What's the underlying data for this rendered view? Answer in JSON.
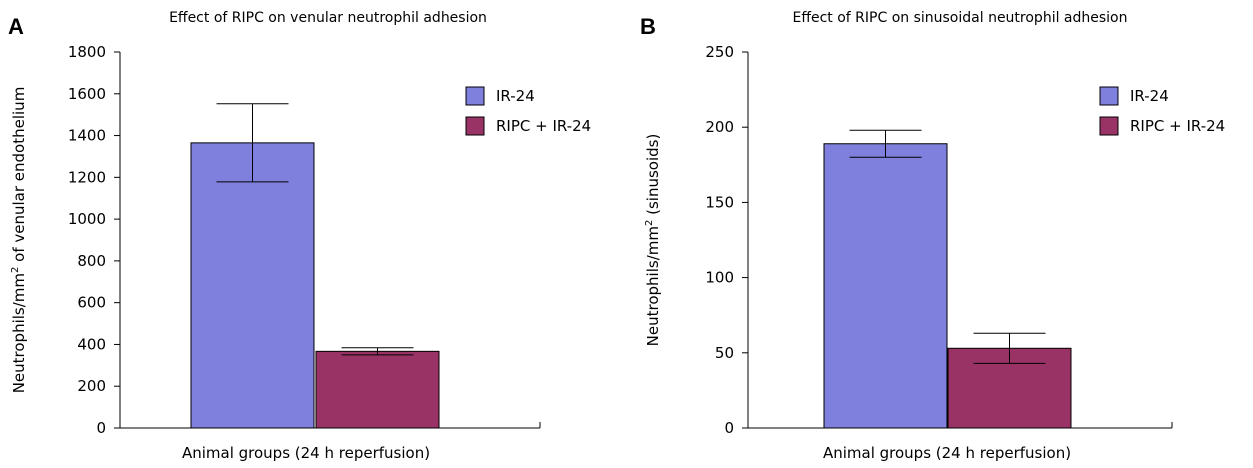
{
  "chart_data": [
    {
      "type": "bar",
      "panel_label": "A",
      "title": "Effect of RIPC on venular neutrophil adhesion",
      "xlabel": "Animal groups (24 h reperfusion)",
      "ylabel_parts": [
        "Neutrophils/mm",
        "2",
        " of venular endothelium"
      ],
      "ylim": [
        0,
        1800
      ],
      "yticks": [
        0,
        200,
        400,
        600,
        800,
        1000,
        1200,
        1400,
        1600,
        1800
      ],
      "legend_position": "top-right",
      "series": [
        {
          "name": "IR-24",
          "value": 1365,
          "error": 187,
          "color": "#7f7fdd"
        },
        {
          "name": "RIPC + IR-24",
          "value": 367,
          "error": 17,
          "color": "#993366"
        }
      ]
    },
    {
      "type": "bar",
      "panel_label": "B",
      "title": "Effect of RIPC on sinusoidal neutrophil adhesion",
      "xlabel": "Animal groups (24 h reperfusion)",
      "ylabel_parts": [
        "Neutrophils/mm",
        "2",
        " (sinusoids)"
      ],
      "ylim": [
        0,
        250
      ],
      "yticks": [
        0,
        50,
        100,
        150,
        200,
        250
      ],
      "legend_position": "top-right",
      "series": [
        {
          "name": "IR-24",
          "value": 189,
          "error": 9,
          "color": "#7f7fdd"
        },
        {
          "name": "RIPC + IR-24",
          "value": 53,
          "error": 10,
          "color": "#993366"
        }
      ]
    }
  ]
}
